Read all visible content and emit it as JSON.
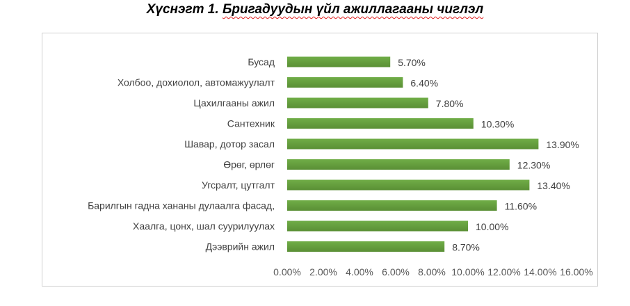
{
  "title": {
    "prefix": "Хүснэгт 1. ",
    "underlined": "Бригадуудын үйл ажиллагааны чиглэл"
  },
  "chart_data": {
    "type": "bar",
    "orientation": "horizontal",
    "categories": [
      "Бусад",
      "Холбоо, дохиолол, автомажуулалт",
      "Цахилгааны ажил",
      "Сантехник",
      "Шавар, дотор засал",
      "Өрөг, өрлөг",
      "Угсралт, цутгалт",
      "Барилгын гадна хананы дулаалга фасад,",
      "Хаалга, цонх, шал суурилуулах",
      "Дээврийн ажил"
    ],
    "values": [
      5.7,
      6.4,
      7.8,
      10.3,
      13.9,
      12.3,
      13.4,
      11.6,
      10.0,
      8.7
    ],
    "value_labels": [
      "5.70%",
      "6.40%",
      "7.80%",
      "10.30%",
      "13.90%",
      "12.30%",
      "13.40%",
      "11.60%",
      "10.00%",
      "8.70%"
    ],
    "x_ticks": [
      "0.00%",
      "2.00%",
      "4.00%",
      "6.00%",
      "8.00%",
      "10.00%",
      "12.00%",
      "14.00%",
      "16.00%"
    ],
    "xlim": [
      0,
      16
    ],
    "grid": false,
    "legend": "none",
    "bar_color": "#70ad47",
    "bar_color_dark": "#5a8f35"
  }
}
